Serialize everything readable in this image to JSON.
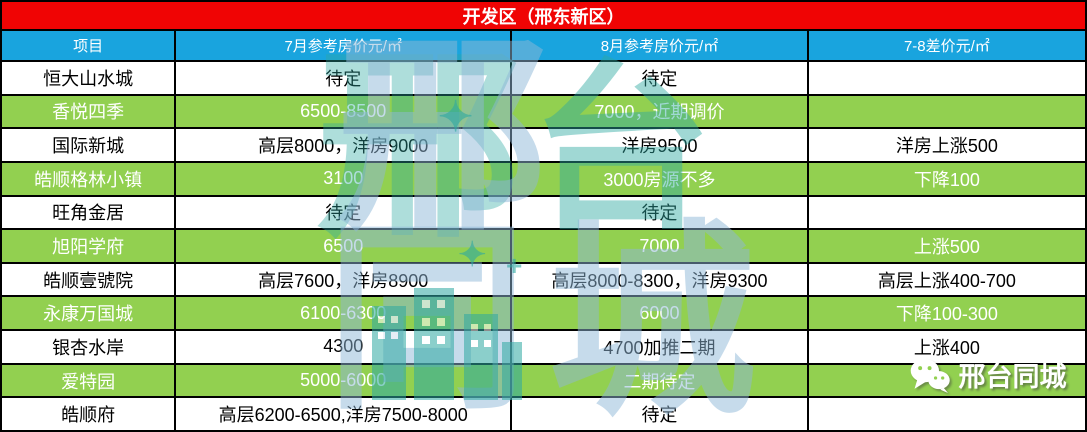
{
  "title": "开发区（邢东新区）",
  "chart_data": {
    "type": "table",
    "title": "开发区（邢东新区）",
    "columns": [
      "项目",
      "7月参考房价元/㎡",
      "8月参考房价元/㎡",
      "7-8差价元/㎡"
    ],
    "rows": [
      [
        "恒大山水城",
        "待定",
        "待定",
        ""
      ],
      [
        "香悦四季",
        "6500-8500",
        "7000，近期调价",
        ""
      ],
      [
        "国际新城",
        "高层8000，洋房9000",
        "洋房9500",
        "洋房上涨500"
      ],
      [
        "皓顺格林小镇",
        "3100",
        "3000房源不多",
        "下降100"
      ],
      [
        "旺角金居",
        "待定",
        "待定",
        ""
      ],
      [
        "旭阳学府",
        "6500",
        "7000",
        "上涨500"
      ],
      [
        "皓顺壹號院",
        "高层7600，洋房8900",
        "高层8000-8300，洋房9300",
        "高层上涨400-700"
      ],
      [
        "永康万国城",
        "6100-6300",
        "6000",
        "下降100-300"
      ],
      [
        "银杏水岸",
        "4300",
        "4700加推二期",
        "上涨400"
      ],
      [
        "爱特园",
        "5000-6000",
        "二期待定",
        ""
      ],
      [
        "皓顺府",
        "高层6200-6500,洋房7500-8000",
        "待定",
        ""
      ]
    ],
    "row_style_note": "rows alternate white/green starting with white"
  },
  "logo": {
    "label": "邢台同城",
    "icon": "wechat-icon"
  },
  "watermark": {
    "glyph_top_left": "邢",
    "glyph_top_right": "台",
    "glyph_bottom_left": "同",
    "glyph_bottom_right": "城",
    "sparkle": "✦",
    "plus": "+"
  },
  "colors": {
    "title_bg": "#F00404",
    "header_bg": "#19A4DE",
    "green_row": "#92D050",
    "watermark_teal": "#2EA9A2",
    "watermark_blue": "#8FB8D8"
  }
}
